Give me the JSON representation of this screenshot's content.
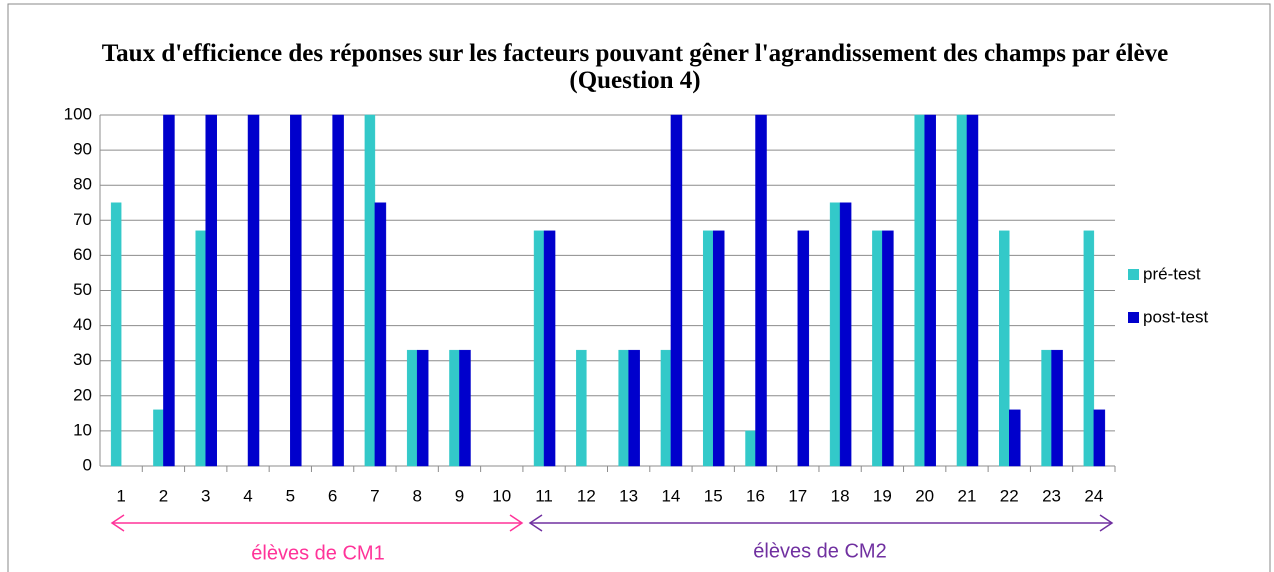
{
  "chart_data": {
    "type": "bar",
    "title": "Taux d'efficience des réponses sur les facteurs pouvant gêner l'agrandissement des champs par élève (Question 4)",
    "categories": [
      "1",
      "2",
      "3",
      "4",
      "5",
      "6",
      "7",
      "8",
      "9",
      "10",
      "11",
      "12",
      "13",
      "14",
      "15",
      "16",
      "17",
      "18",
      "19",
      "20",
      "21",
      "22",
      "23",
      "24"
    ],
    "series": [
      {
        "name": "pré-test",
        "color": "#33c9c9",
        "values": [
          75,
          16,
          67,
          0,
          0,
          0,
          100,
          33,
          33,
          0,
          67,
          33,
          33,
          33,
          67,
          10,
          0,
          75,
          67,
          100,
          100,
          67,
          33,
          67
        ]
      },
      {
        "name": "post-test",
        "color": "#0000cc",
        "values": [
          0,
          100,
          100,
          100,
          100,
          100,
          75,
          33,
          33,
          0,
          67,
          0,
          33,
          100,
          67,
          100,
          67,
          75,
          67,
          100,
          100,
          16,
          33,
          16
        ]
      }
    ],
    "ylim": [
      0,
      100
    ],
    "yticks": [
      0,
      10,
      20,
      30,
      40,
      50,
      60,
      70,
      80,
      90,
      100
    ],
    "grid": true,
    "legend": "right",
    "annotations": [
      "élèves de CM1",
      "élèves de CM2"
    ]
  }
}
